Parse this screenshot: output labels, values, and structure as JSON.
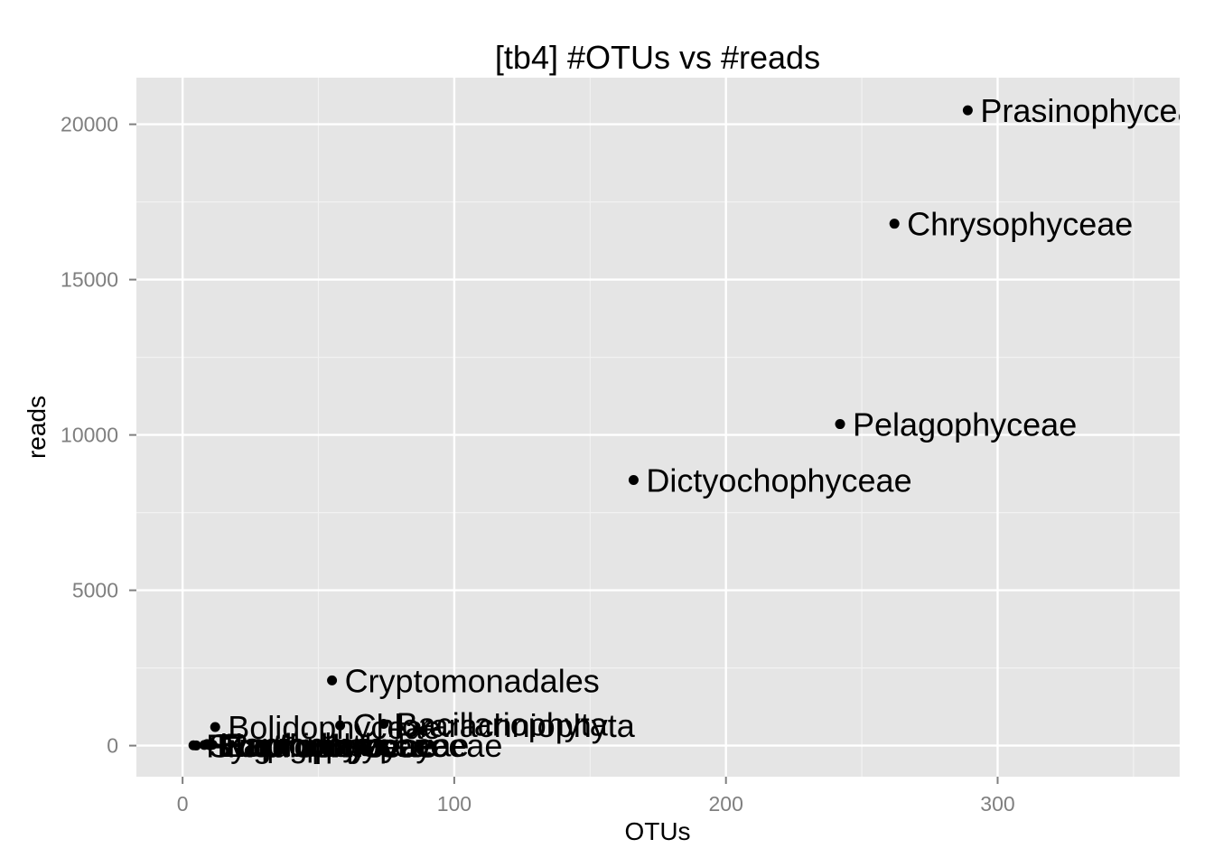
{
  "chart_data": {
    "type": "scatter",
    "title": "[tb4] #OTUs vs #reads",
    "xlabel": "OTUs",
    "ylabel": "reads",
    "xlim": [
      -17,
      367
    ],
    "ylim": [
      -1000,
      21500
    ],
    "xticks": [
      0,
      100,
      200,
      300
    ],
    "xtick_labels": [
      "0",
      "100",
      "200",
      "300"
    ],
    "yticks": [
      0,
      5000,
      10000,
      15000,
      20000
    ],
    "ytick_labels": [
      "0",
      "5000",
      "10000",
      "15000",
      "20000"
    ],
    "grid": true,
    "legend": "none",
    "points": [
      {
        "label": "Prasinophyceae",
        "x": 289,
        "y": 20450
      },
      {
        "label": "Chrysophyceae",
        "x": 262,
        "y": 16800
      },
      {
        "label": "Pelagophyceae",
        "x": 242,
        "y": 10350
      },
      {
        "label": "Dictyochophyceae",
        "x": 166,
        "y": 8550
      },
      {
        "label": "Cryptomonadales",
        "x": 55,
        "y": 2100
      },
      {
        "label": "Bacillariophyta",
        "x": 74,
        "y": 700
      },
      {
        "label": "Chlorarachniophyta",
        "x": 58,
        "y": 650
      },
      {
        "label": "Bolidophyceae",
        "x": 12,
        "y": 600
      },
      {
        "label": "Haptophyta",
        "x": 9,
        "y": 50
      },
      {
        "label": "Raphidophyceae",
        "x": 11,
        "y": 30
      },
      {
        "label": "Eustigmatophyceae",
        "x": 8,
        "y": 20
      },
      {
        "label": "Pinguiophyceae",
        "x": 4,
        "y": 10
      },
      {
        "label": "Xanthophyceae",
        "x": 10,
        "y": 15
      },
      {
        "label": "Synurophyceae",
        "x": 5,
        "y": 5
      }
    ]
  },
  "colors": {
    "panel": "#e5e5e5",
    "grid_major": "#ffffff",
    "grid_minor": "#f2f2f2",
    "point": "#000000",
    "tick_label": "#7f7f7f"
  }
}
